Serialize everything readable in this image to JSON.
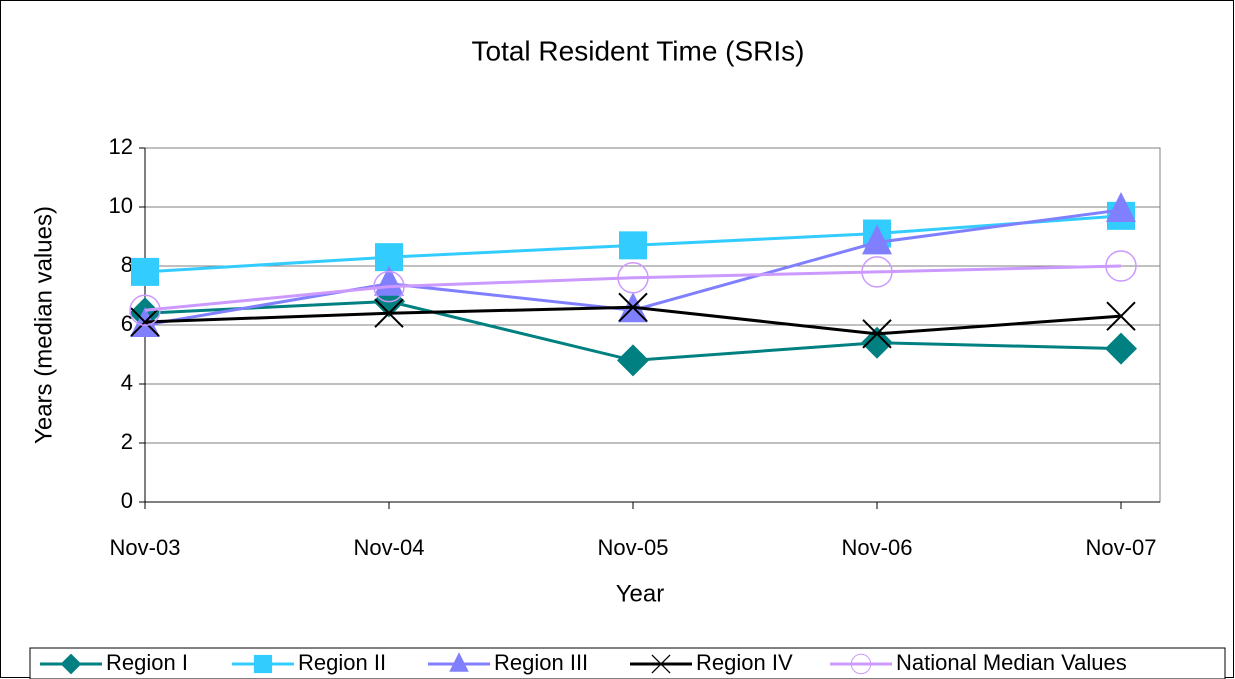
{
  "chart_data": {
    "type": "line",
    "title": "Total Resident Time (SRIs)",
    "x_label": "Year",
    "y_label": "Years (median values)",
    "categories": [
      "Nov-03",
      "Nov-04",
      "Nov-05",
      "Nov-06",
      "Nov-07"
    ],
    "series": [
      {
        "name": "Region I",
        "color": "#008080",
        "marker": "diamond",
        "values": [
          6.4,
          6.8,
          4.8,
          5.4,
          5.2
        ]
      },
      {
        "name": "Region II",
        "color": "#33ccff",
        "marker": "square",
        "values": [
          7.8,
          8.3,
          8.7,
          9.1,
          9.7
        ]
      },
      {
        "name": "Region III",
        "color": "#8080ff",
        "marker": "triangle",
        "values": [
          6.0,
          7.4,
          6.5,
          8.8,
          9.9
        ]
      },
      {
        "name": "Region IV",
        "color": "#000000",
        "marker": "x",
        "values": [
          6.1,
          6.4,
          6.6,
          5.7,
          6.3
        ]
      },
      {
        "name": "National Median Values",
        "color": "#cc99ff",
        "marker": "circle",
        "values": [
          6.5,
          7.3,
          7.6,
          7.8,
          8.0
        ]
      }
    ],
    "ylim": [
      0,
      12
    ],
    "yticks": [
      0,
      2,
      4,
      6,
      8,
      10,
      12
    ],
    "grid": true,
    "legend": "bottom"
  }
}
